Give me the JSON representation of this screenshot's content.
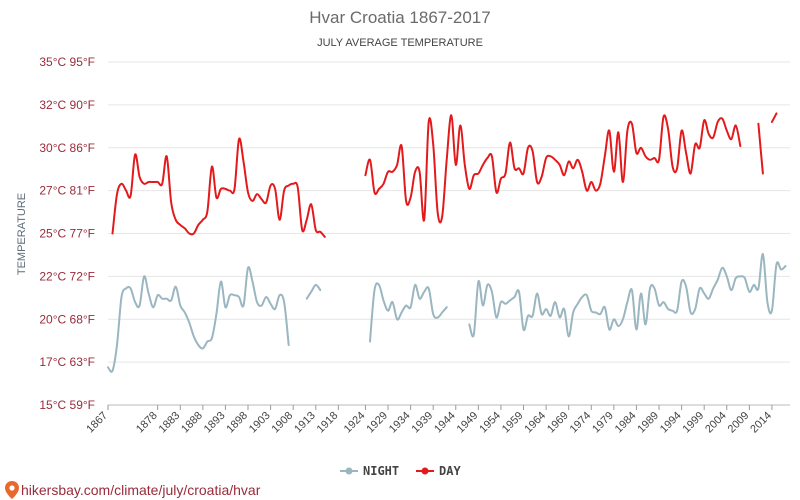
{
  "chart_data": {
    "type": "line",
    "title": "Hvar Croatia 1867-2017",
    "subtitle": "JULY AVERAGE TEMPERATURE",
    "ylabel": "TEMPERATURE",
    "xlim": [
      1867,
      2018
    ],
    "ylim": [
      15,
      35
    ],
    "y_ticks": [
      {
        "value": 15,
        "label": "15°C 59°F"
      },
      {
        "value": 17.5,
        "label": "17°C 63°F"
      },
      {
        "value": 20,
        "label": "20°C 68°F"
      },
      {
        "value": 22.5,
        "label": "22°C 72°F"
      },
      {
        "value": 25,
        "label": "25°C 77°F"
      },
      {
        "value": 27.5,
        "label": "27°C 81°F"
      },
      {
        "value": 30,
        "label": "30°C 86°F"
      },
      {
        "value": 32.5,
        "label": "32°C 90°F"
      },
      {
        "value": 35,
        "label": "35°C 95°F"
      }
    ],
    "x_ticks": [
      1867,
      1878,
      1883,
      1888,
      1893,
      1898,
      1903,
      1908,
      1913,
      1918,
      1924,
      1929,
      1934,
      1939,
      1944,
      1949,
      1954,
      1959,
      1964,
      1969,
      1974,
      1979,
      1984,
      1989,
      1994,
      1999,
      2004,
      2009,
      2014
    ],
    "grid": true,
    "legend_position": "bottom-center",
    "series": [
      {
        "name": "NIGHT",
        "color": "#9ab6c0",
        "points": [
          [
            1867,
            17.2
          ],
          [
            1868,
            17.0
          ],
          [
            1869,
            18.5
          ],
          [
            1870,
            21.3
          ],
          [
            1871,
            21.8
          ],
          [
            1872,
            21.8
          ],
          [
            1873,
            21.0
          ],
          [
            1874,
            20.8
          ],
          [
            1875,
            22.5
          ],
          [
            1876,
            21.5
          ],
          [
            1877,
            20.7
          ],
          [
            1878,
            21.4
          ],
          [
            1879,
            21.2
          ],
          [
            1880,
            21.2
          ],
          [
            1881,
            21.1
          ],
          [
            1882,
            21.9
          ],
          [
            1883,
            20.8
          ],
          [
            1884,
            20.4
          ],
          [
            1885,
            19.8
          ],
          [
            1886,
            19.0
          ],
          [
            1887,
            18.5
          ],
          [
            1888,
            18.3
          ],
          [
            1889,
            18.7
          ],
          [
            1890,
            18.9
          ],
          [
            1891,
            20.3
          ],
          [
            1892,
            22.2
          ],
          [
            1893,
            20.7
          ],
          [
            1894,
            21.4
          ],
          [
            1895,
            21.4
          ],
          [
            1896,
            21.3
          ],
          [
            1897,
            20.8
          ],
          [
            1898,
            23.0
          ],
          [
            1899,
            22.2
          ],
          [
            1900,
            21.0
          ],
          [
            1901,
            20.8
          ],
          [
            1902,
            21.3
          ],
          [
            1903,
            20.9
          ],
          [
            1904,
            20.6
          ],
          [
            1905,
            21.4
          ],
          [
            1906,
            21.0
          ],
          [
            1907,
            18.5
          ],
          [
            1911,
            21.2
          ],
          [
            1912,
            21.6
          ],
          [
            1913,
            22.0
          ],
          [
            1914,
            21.7
          ],
          [
            1925,
            18.7
          ],
          [
            1926,
            21.7
          ],
          [
            1927,
            22.0
          ],
          [
            1928,
            21.1
          ],
          [
            1929,
            20.5
          ],
          [
            1930,
            21.0
          ],
          [
            1931,
            20.0
          ],
          [
            1932,
            20.4
          ],
          [
            1933,
            20.8
          ],
          [
            1934,
            20.7
          ],
          [
            1935,
            22.0
          ],
          [
            1936,
            21.2
          ],
          [
            1937,
            21.6
          ],
          [
            1938,
            21.8
          ],
          [
            1939,
            20.3
          ],
          [
            1940,
            20.1
          ],
          [
            1941,
            20.4
          ],
          [
            1942,
            20.7
          ],
          [
            1947,
            19.7
          ],
          [
            1948,
            19.1
          ],
          [
            1949,
            22.2
          ],
          [
            1950,
            20.8
          ],
          [
            1951,
            22.0
          ],
          [
            1952,
            21.6
          ],
          [
            1953,
            20.1
          ],
          [
            1954,
            21.0
          ],
          [
            1955,
            20.9
          ],
          [
            1956,
            21.1
          ],
          [
            1957,
            21.3
          ],
          [
            1958,
            21.6
          ],
          [
            1959,
            19.4
          ],
          [
            1960,
            20.2
          ],
          [
            1961,
            20.2
          ],
          [
            1962,
            21.5
          ],
          [
            1963,
            20.3
          ],
          [
            1964,
            20.6
          ],
          [
            1965,
            20.2
          ],
          [
            1966,
            21.0
          ],
          [
            1967,
            20.1
          ],
          [
            1968,
            20.6
          ],
          [
            1969,
            19.0
          ],
          [
            1970,
            20.4
          ],
          [
            1971,
            20.9
          ],
          [
            1972,
            21.3
          ],
          [
            1973,
            21.4
          ],
          [
            1974,
            20.5
          ],
          [
            1975,
            20.4
          ],
          [
            1976,
            20.3
          ],
          [
            1977,
            20.7
          ],
          [
            1978,
            19.4
          ],
          [
            1979,
            20.0
          ],
          [
            1980,
            19.6
          ],
          [
            1981,
            20.0
          ],
          [
            1982,
            21.0
          ],
          [
            1983,
            21.7
          ],
          [
            1984,
            19.4
          ],
          [
            1985,
            21.5
          ],
          [
            1986,
            19.7
          ],
          [
            1987,
            21.8
          ],
          [
            1988,
            21.8
          ],
          [
            1989,
            20.8
          ],
          [
            1990,
            21.0
          ],
          [
            1991,
            20.6
          ],
          [
            1992,
            20.5
          ],
          [
            1993,
            20.5
          ],
          [
            1994,
            22.2
          ],
          [
            1995,
            21.9
          ],
          [
            1996,
            20.4
          ],
          [
            1997,
            20.6
          ],
          [
            1998,
            21.8
          ],
          [
            1999,
            21.5
          ],
          [
            2000,
            21.2
          ],
          [
            2001,
            21.8
          ],
          [
            2002,
            22.3
          ],
          [
            2003,
            23.0
          ],
          [
            2004,
            22.5
          ],
          [
            2005,
            21.7
          ],
          [
            2006,
            22.4
          ],
          [
            2007,
            22.5
          ],
          [
            2008,
            22.4
          ],
          [
            2009,
            21.6
          ],
          [
            2010,
            22.0
          ],
          [
            2011,
            21.8
          ],
          [
            2012,
            23.8
          ],
          [
            2013,
            21.0
          ],
          [
            2014,
            20.5
          ],
          [
            2015,
            23.2
          ],
          [
            2016,
            22.9
          ],
          [
            2017,
            23.1
          ]
        ]
      },
      {
        "name": "DAY",
        "color": "#e31a1c",
        "points": [
          [
            1868,
            25.0
          ],
          [
            1869,
            27.3
          ],
          [
            1870,
            27.9
          ],
          [
            1871,
            27.5
          ],
          [
            1872,
            27.2
          ],
          [
            1873,
            29.6
          ],
          [
            1874,
            28.3
          ],
          [
            1875,
            27.9
          ],
          [
            1876,
            28.0
          ],
          [
            1877,
            28.0
          ],
          [
            1878,
            28.0
          ],
          [
            1879,
            27.9
          ],
          [
            1880,
            29.5
          ],
          [
            1881,
            26.8
          ],
          [
            1882,
            25.8
          ],
          [
            1883,
            25.5
          ],
          [
            1884,
            25.3
          ],
          [
            1885,
            25.0
          ],
          [
            1886,
            25.0
          ],
          [
            1887,
            25.5
          ],
          [
            1888,
            25.8
          ],
          [
            1889,
            26.3
          ],
          [
            1890,
            28.9
          ],
          [
            1891,
            27.1
          ],
          [
            1892,
            27.6
          ],
          [
            1893,
            27.6
          ],
          [
            1894,
            27.5
          ],
          [
            1895,
            27.6
          ],
          [
            1896,
            30.5
          ],
          [
            1897,
            29.2
          ],
          [
            1898,
            27.4
          ],
          [
            1899,
            26.9
          ],
          [
            1900,
            27.3
          ],
          [
            1901,
            27.0
          ],
          [
            1902,
            26.8
          ],
          [
            1903,
            27.8
          ],
          [
            1904,
            27.6
          ],
          [
            1905,
            25.8
          ],
          [
            1906,
            27.5
          ],
          [
            1907,
            27.8
          ],
          [
            1908,
            27.9
          ],
          [
            1909,
            27.7
          ],
          [
            1910,
            25.2
          ],
          [
            1911,
            25.8
          ],
          [
            1912,
            26.7
          ],
          [
            1913,
            25.2
          ],
          [
            1914,
            25.1
          ],
          [
            1915,
            24.8
          ],
          [
            1924,
            28.4
          ],
          [
            1925,
            29.3
          ],
          [
            1926,
            27.4
          ],
          [
            1927,
            27.6
          ],
          [
            1928,
            27.9
          ],
          [
            1929,
            28.6
          ],
          [
            1930,
            28.6
          ],
          [
            1931,
            29.0
          ],
          [
            1932,
            30.1
          ],
          [
            1933,
            26.9
          ],
          [
            1934,
            27.1
          ],
          [
            1935,
            28.6
          ],
          [
            1936,
            28.6
          ],
          [
            1937,
            25.8
          ],
          [
            1938,
            31.5
          ],
          [
            1939,
            30.2
          ],
          [
            1940,
            26.2
          ],
          [
            1941,
            26.0
          ],
          [
            1942,
            29.3
          ],
          [
            1943,
            31.9
          ],
          [
            1944,
            29.0
          ],
          [
            1945,
            31.3
          ],
          [
            1946,
            29.0
          ],
          [
            1947,
            27.6
          ],
          [
            1948,
            28.4
          ],
          [
            1949,
            28.5
          ],
          [
            1950,
            29.0
          ],
          [
            1951,
            29.4
          ],
          [
            1952,
            29.5
          ],
          [
            1953,
            27.4
          ],
          [
            1954,
            28.2
          ],
          [
            1955,
            28.5
          ],
          [
            1956,
            30.3
          ],
          [
            1957,
            28.8
          ],
          [
            1958,
            28.8
          ],
          [
            1959,
            28.5
          ],
          [
            1960,
            30.0
          ],
          [
            1961,
            29.8
          ],
          [
            1962,
            28.0
          ],
          [
            1963,
            28.3
          ],
          [
            1964,
            29.4
          ],
          [
            1965,
            29.5
          ],
          [
            1966,
            29.3
          ],
          [
            1967,
            29.0
          ],
          [
            1968,
            28.4
          ],
          [
            1969,
            29.2
          ],
          [
            1970,
            28.8
          ],
          [
            1971,
            29.3
          ],
          [
            1972,
            28.6
          ],
          [
            1973,
            27.5
          ],
          [
            1974,
            28.0
          ],
          [
            1975,
            27.5
          ],
          [
            1976,
            27.9
          ],
          [
            1977,
            29.5
          ],
          [
            1978,
            31.0
          ],
          [
            1979,
            28.6
          ],
          [
            1980,
            30.9
          ],
          [
            1981,
            28.0
          ],
          [
            1982,
            31.0
          ],
          [
            1983,
            31.4
          ],
          [
            1984,
            29.7
          ],
          [
            1985,
            30.0
          ],
          [
            1986,
            29.5
          ],
          [
            1987,
            29.3
          ],
          [
            1988,
            29.4
          ],
          [
            1989,
            29.3
          ],
          [
            1990,
            31.8
          ],
          [
            1991,
            31.1
          ],
          [
            1992,
            28.9
          ],
          [
            1993,
            28.8
          ],
          [
            1994,
            31.0
          ],
          [
            1995,
            29.7
          ],
          [
            1996,
            28.5
          ],
          [
            1997,
            30.2
          ],
          [
            1998,
            30.0
          ],
          [
            1999,
            31.6
          ],
          [
            2000,
            30.8
          ],
          [
            2001,
            30.6
          ],
          [
            2002,
            31.5
          ],
          [
            2003,
            31.7
          ],
          [
            2004,
            31.0
          ],
          [
            2005,
            30.5
          ],
          [
            2006,
            31.3
          ],
          [
            2007,
            30.1
          ],
          [
            2011,
            31.4
          ],
          [
            2012,
            28.5
          ],
          [
            2014,
            31.5
          ],
          [
            2015,
            32.0
          ]
        ]
      }
    ]
  },
  "watermark": "hikersbay.com/climate/july/croatia/hvar"
}
